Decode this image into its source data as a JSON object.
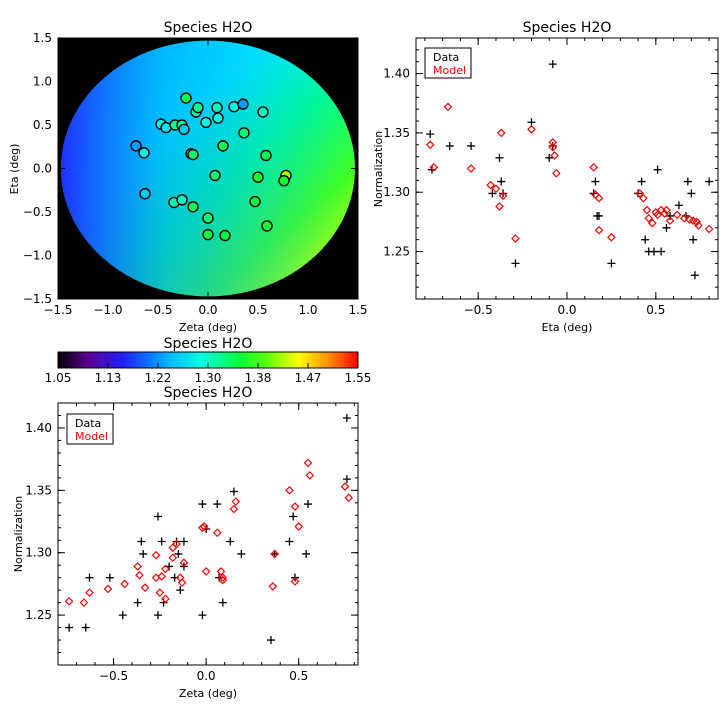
{
  "chart_data": [
    {
      "id": "map",
      "type": "heatmap",
      "title": "Species H2O",
      "xlabel": "Zeta (deg)",
      "ylabel": "Eta (deg)",
      "xlim": [
        -1.5,
        1.5
      ],
      "ylim": [
        -1.5,
        1.5
      ],
      "xticks": [
        -1.5,
        -1.0,
        -0.5,
        0.0,
        0.5,
        1.0,
        1.5
      ],
      "yticks": [
        -1.5,
        -1.0,
        -0.5,
        0.0,
        0.5,
        1.0,
        1.5
      ],
      "tick_labels": [
        "−1.5",
        "−1.0",
        "−0.5",
        "0.0",
        "0.5",
        "1.0",
        "1.5"
      ],
      "background": "#000000",
      "field_radius_deg": 1.47,
      "points": [
        {
          "zeta": -0.72,
          "eta": 0.26,
          "value": 1.22
        },
        {
          "zeta": -0.64,
          "eta": 0.18,
          "value": 1.28
        },
        {
          "zeta": -0.63,
          "eta": -0.29,
          "value": 1.25
        },
        {
          "zeta": -0.47,
          "eta": 0.51,
          "value": 1.29
        },
        {
          "zeta": -0.42,
          "eta": 0.47,
          "value": 1.27
        },
        {
          "zeta": -0.33,
          "eta": 0.5,
          "value": 1.32
        },
        {
          "zeta": -0.26,
          "eta": 0.5,
          "value": 1.31
        },
        {
          "zeta": -0.24,
          "eta": 0.45,
          "value": 1.25
        },
        {
          "zeta": -0.22,
          "eta": 0.81,
          "value": 1.34
        },
        {
          "zeta": -0.12,
          "eta": 0.65,
          "value": 1.31
        },
        {
          "zeta": -0.1,
          "eta": 0.7,
          "value": 1.32
        },
        {
          "zeta": -0.02,
          "eta": 0.53,
          "value": 1.29
        },
        {
          "zeta": 0.09,
          "eta": 0.7,
          "value": 1.3
        },
        {
          "zeta": 0.1,
          "eta": 0.58,
          "value": 1.29
        },
        {
          "zeta": 0.26,
          "eta": 0.71,
          "value": 1.29
        },
        {
          "zeta": 0.35,
          "eta": 0.74,
          "value": 1.22
        },
        {
          "zeta": 0.36,
          "eta": 0.41,
          "value": 1.33
        },
        {
          "zeta": 0.55,
          "eta": 0.65,
          "value": 1.3
        },
        {
          "zeta": -0.17,
          "eta": 0.17,
          "value": 1.32
        },
        {
          "zeta": -0.15,
          "eta": 0.16,
          "value": 1.33
        },
        {
          "zeta": 0.15,
          "eta": 0.26,
          "value": 1.34
        },
        {
          "zeta": 0.58,
          "eta": 0.15,
          "value": 1.34
        },
        {
          "zeta": -0.34,
          "eta": -0.39,
          "value": 1.31
        },
        {
          "zeta": -0.26,
          "eta": -0.36,
          "value": 1.3
        },
        {
          "zeta": -0.15,
          "eta": -0.44,
          "value": 1.34
        },
        {
          "zeta": 0.07,
          "eta": -0.08,
          "value": 1.33
        },
        {
          "zeta": 0.5,
          "eta": -0.1,
          "value": 1.36
        },
        {
          "zeta": 0.78,
          "eta": -0.08,
          "value": 1.42
        },
        {
          "zeta": 0.76,
          "eta": -0.14,
          "value": 1.36
        },
        {
          "zeta": 0.47,
          "eta": -0.38,
          "value": 1.35
        },
        {
          "zeta": 0.0,
          "eta": -0.57,
          "value": 1.33
        },
        {
          "zeta": 0.59,
          "eta": -0.66,
          "value": 1.36
        },
        {
          "zeta": -0.0,
          "eta": -0.76,
          "value": 1.35
        },
        {
          "zeta": 0.17,
          "eta": -0.77,
          "value": 1.35
        }
      ]
    },
    {
      "id": "colorbar",
      "type": "colorbar",
      "title": "Species H2O",
      "vmin": 1.05,
      "vmax": 1.55,
      "tick_labels": [
        "1.05",
        "1.13",
        "1.22",
        "1.30",
        "1.38",
        "1.47",
        "1.55"
      ]
    },
    {
      "id": "eta_scatter",
      "type": "scatter",
      "title": "Species H2O",
      "xlabel": "Eta (deg)",
      "ylabel": "Normalization",
      "xlim": [
        -0.85,
        0.85
      ],
      "ylim": [
        1.21,
        1.43
      ],
      "xticks": [
        -0.5,
        0.0,
        0.5
      ],
      "xtick_labels": [
        "−0.5",
        "0.0",
        "0.5"
      ],
      "yticks": [
        1.25,
        1.3,
        1.35,
        1.4
      ],
      "ytick_labels": [
        "1.25",
        "1.30",
        "1.35",
        "1.40"
      ],
      "legend": {
        "position": "top-left",
        "entries": [
          {
            "label": "Data",
            "color": "#000000"
          },
          {
            "label": "Model",
            "color": "#ff0000"
          }
        ]
      },
      "series": [
        {
          "name": "Data",
          "marker": "plus",
          "color": "#000000",
          "points": [
            [
              -0.77,
              1.349
            ],
            [
              -0.76,
              1.319
            ],
            [
              -0.66,
              1.339
            ],
            [
              -0.54,
              1.339
            ],
            [
              -0.42,
              1.299
            ],
            [
              -0.38,
              1.329
            ],
            [
              -0.37,
              1.309
            ],
            [
              -0.36,
              1.299
            ],
            [
              -0.29,
              1.24
            ],
            [
              -0.2,
              1.359
            ],
            [
              -0.1,
              1.329
            ],
            [
              -0.08,
              1.339
            ],
            [
              -0.08,
              1.408
            ],
            [
              0.15,
              1.299
            ],
            [
              0.16,
              1.309
            ],
            [
              0.17,
              1.28
            ],
            [
              0.18,
              1.28
            ],
            [
              0.25,
              1.24
            ],
            [
              0.4,
              1.299
            ],
            [
              0.42,
              1.309
            ],
            [
              0.44,
              1.26
            ],
            [
              0.46,
              1.25
            ],
            [
              0.49,
              1.25
            ],
            [
              0.51,
              1.319
            ],
            [
              0.53,
              1.25
            ],
            [
              0.56,
              1.27
            ],
            [
              0.58,
              1.28
            ],
            [
              0.63,
              1.289
            ],
            [
              0.67,
              1.28
            ],
            [
              0.68,
              1.309
            ],
            [
              0.7,
              1.299
            ],
            [
              0.71,
              1.26
            ],
            [
              0.72,
              1.23
            ],
            [
              0.8,
              1.309
            ]
          ]
        },
        {
          "name": "Model",
          "marker": "diamond",
          "color": "#ff0000",
          "points": [
            [
              -0.77,
              1.34
            ],
            [
              -0.75,
              1.321
            ],
            [
              -0.67,
              1.372
            ],
            [
              -0.54,
              1.32
            ],
            [
              -0.43,
              1.306
            ],
            [
              -0.4,
              1.303
            ],
            [
              -0.38,
              1.288
            ],
            [
              -0.37,
              1.35
            ],
            [
              -0.36,
              1.297
            ],
            [
              -0.29,
              1.261
            ],
            [
              -0.2,
              1.353
            ],
            [
              -0.08,
              1.342
            ],
            [
              -0.08,
              1.338
            ],
            [
              -0.07,
              1.331
            ],
            [
              -0.06,
              1.316
            ],
            [
              0.15,
              1.321
            ],
            [
              0.16,
              1.298
            ],
            [
              0.18,
              1.295
            ],
            [
              0.18,
              1.268
            ],
            [
              0.25,
              1.262
            ],
            [
              0.41,
              1.299
            ],
            [
              0.43,
              1.295
            ],
            [
              0.45,
              1.285
            ],
            [
              0.46,
              1.278
            ],
            [
              0.48,
              1.274
            ],
            [
              0.5,
              1.283
            ],
            [
              0.51,
              1.281
            ],
            [
              0.53,
              1.285
            ],
            [
              0.55,
              1.282
            ],
            [
              0.56,
              1.285
            ],
            [
              0.58,
              1.276
            ],
            [
              0.62,
              1.281
            ],
            [
              0.66,
              1.278
            ],
            [
              0.69,
              1.277
            ],
            [
              0.71,
              1.276
            ],
            [
              0.73,
              1.275
            ],
            [
              0.74,
              1.272
            ],
            [
              0.8,
              1.269
            ]
          ]
        }
      ]
    },
    {
      "id": "zeta_scatter",
      "type": "scatter",
      "title": "Species H2O",
      "xlabel": "Zeta (deg)",
      "ylabel": "Normalization",
      "xlim": [
        -0.8,
        0.82
      ],
      "ylim": [
        1.21,
        1.42
      ],
      "xticks": [
        -0.5,
        0.0,
        0.5
      ],
      "xtick_labels": [
        "−0.5",
        "0.0",
        "0.5"
      ],
      "yticks": [
        1.25,
        1.3,
        1.35,
        1.4
      ],
      "ytick_labels": [
        "1.25",
        "1.30",
        "1.35",
        "1.40"
      ],
      "legend": {
        "position": "top-left",
        "entries": [
          {
            "label": "Data",
            "color": "#000000"
          },
          {
            "label": "Model",
            "color": "#ff0000"
          }
        ]
      },
      "series": [
        {
          "name": "Data",
          "marker": "plus",
          "color": "#000000",
          "points": [
            [
              -0.74,
              1.24
            ],
            [
              -0.65,
              1.24
            ],
            [
              -0.63,
              1.28
            ],
            [
              -0.52,
              1.28
            ],
            [
              -0.45,
              1.25
            ],
            [
              -0.37,
              1.26
            ],
            [
              -0.35,
              1.309
            ],
            [
              -0.34,
              1.299
            ],
            [
              -0.26,
              1.329
            ],
            [
              -0.26,
              1.25
            ],
            [
              -0.24,
              1.309
            ],
            [
              -0.23,
              1.26
            ],
            [
              -0.2,
              1.289
            ],
            [
              -0.17,
              1.28
            ],
            [
              -0.16,
              1.309
            ],
            [
              -0.15,
              1.299
            ],
            [
              -0.14,
              1.27
            ],
            [
              -0.12,
              1.289
            ],
            [
              -0.12,
              1.309
            ],
            [
              -0.02,
              1.339
            ],
            [
              -0.02,
              1.25
            ],
            [
              0.0,
              1.319
            ],
            [
              0.06,
              1.339
            ],
            [
              0.07,
              1.28
            ],
            [
              0.09,
              1.26
            ],
            [
              0.13,
              1.309
            ],
            [
              0.15,
              1.349
            ],
            [
              0.19,
              1.299
            ],
            [
              0.35,
              1.23
            ],
            [
              0.37,
              1.299
            ],
            [
              0.45,
              1.309
            ],
            [
              0.47,
              1.329
            ],
            [
              0.48,
              1.28
            ],
            [
              0.54,
              1.299
            ],
            [
              0.55,
              1.339
            ],
            [
              0.76,
              1.359
            ],
            [
              0.76,
              1.408
            ]
          ]
        },
        {
          "name": "Model",
          "marker": "diamond",
          "color": "#ff0000",
          "points": [
            [
              -0.74,
              1.261
            ],
            [
              -0.66,
              1.26
            ],
            [
              -0.63,
              1.268
            ],
            [
              -0.53,
              1.271
            ],
            [
              -0.44,
              1.275
            ],
            [
              -0.37,
              1.289
            ],
            [
              -0.36,
              1.282
            ],
            [
              -0.33,
              1.272
            ],
            [
              -0.27,
              1.298
            ],
            [
              -0.27,
              1.28
            ],
            [
              -0.25,
              1.268
            ],
            [
              -0.24,
              1.281
            ],
            [
              -0.22,
              1.287
            ],
            [
              -0.22,
              1.263
            ],
            [
              -0.18,
              1.304
            ],
            [
              -0.18,
              1.296
            ],
            [
              -0.16,
              1.307
            ],
            [
              -0.14,
              1.28
            ],
            [
              -0.13,
              1.276
            ],
            [
              -0.12,
              1.292
            ],
            [
              -0.02,
              1.32
            ],
            [
              -0.01,
              1.321
            ],
            [
              -0.0,
              1.285
            ],
            [
              0.06,
              1.316
            ],
            [
              0.08,
              1.285
            ],
            [
              0.09,
              1.28
            ],
            [
              0.09,
              1.278
            ],
            [
              0.15,
              1.335
            ],
            [
              0.16,
              1.341
            ],
            [
              0.36,
              1.273
            ],
            [
              0.37,
              1.299
            ],
            [
              0.45,
              1.35
            ],
            [
              0.48,
              1.337
            ],
            [
              0.48,
              1.277
            ],
            [
              0.5,
              1.321
            ],
            [
              0.55,
              1.372
            ],
            [
              0.56,
              1.362
            ],
            [
              0.75,
              1.353
            ],
            [
              0.77,
              1.344
            ]
          ]
        }
      ]
    }
  ]
}
